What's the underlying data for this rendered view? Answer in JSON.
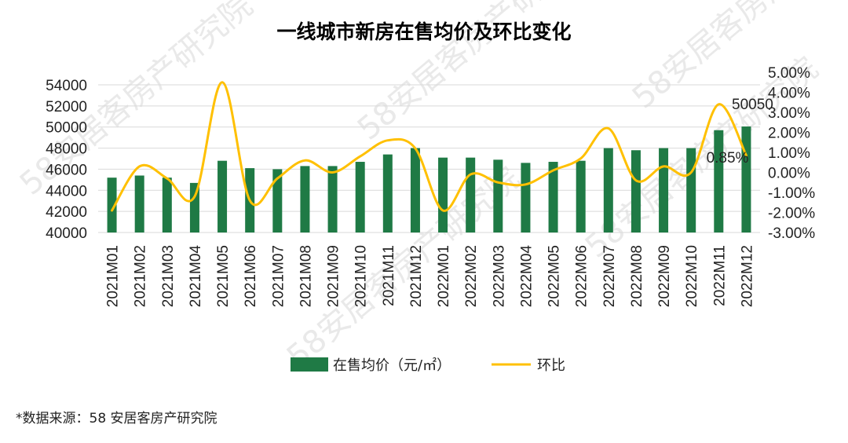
{
  "chart_data": {
    "type": "bar+line",
    "title": "一线城市新房在售均价及环比变化",
    "categories": [
      "2021M01",
      "2021M02",
      "2021M03",
      "2021M04",
      "2021M05",
      "2021M06",
      "2021M07",
      "2021M08",
      "2021M09",
      "2021M10",
      "2021M11",
      "2021M12",
      "2022M01",
      "2022M02",
      "2022M03",
      "2022M04",
      "2022M05",
      "2022M06",
      "2022M07",
      "2022M08",
      "2022M09",
      "2022M10",
      "2022M11",
      "2022M12"
    ],
    "series": [
      {
        "name": "在售均价（元/㎡）",
        "type": "bar",
        "axis": "left",
        "color": "#1f7a45",
        "values": [
          45200,
          45400,
          45200,
          44700,
          46800,
          46100,
          46000,
          46300,
          46300,
          46700,
          47400,
          48000,
          47100,
          47100,
          46900,
          46600,
          46700,
          46800,
          48000,
          47800,
          48000,
          48000,
          49700,
          50050
        ]
      },
      {
        "name": "环比",
        "type": "line",
        "axis": "right",
        "color": "#ffc000",
        "values": [
          -1.9,
          0.3,
          -0.3,
          -1.2,
          4.5,
          -1.4,
          -0.3,
          0.6,
          0.0,
          0.8,
          1.6,
          1.2,
          -1.9,
          -0.1,
          -0.5,
          -0.6,
          0.1,
          0.7,
          2.2,
          -0.4,
          0.3,
          0.0,
          3.4,
          0.85
        ]
      }
    ],
    "y_left": {
      "min": 40000,
      "max": 54000,
      "step": 2000,
      "ticks": [
        "40000",
        "42000",
        "44000",
        "46000",
        "48000",
        "50000",
        "52000",
        "54000"
      ]
    },
    "y_right": {
      "min": -3.0,
      "max": 5.0,
      "step": 1.0,
      "ticks": [
        "-3.00%",
        "-2.00%",
        "-1.00%",
        "0.00%",
        "1.00%",
        "2.00%",
        "3.00%",
        "4.00%",
        "5.00%"
      ]
    },
    "data_labels": [
      {
        "series": 0,
        "index": 23,
        "text": "50050"
      },
      {
        "series": 1,
        "index": 23,
        "text": "0.85%"
      }
    ],
    "grid": true,
    "legend_position": "bottom",
    "legend": [
      "在售均价（元/㎡）",
      "环比"
    ],
    "source": "*数据来源：58 安居客房产研究院"
  },
  "watermark": "58安居客房产研究院"
}
